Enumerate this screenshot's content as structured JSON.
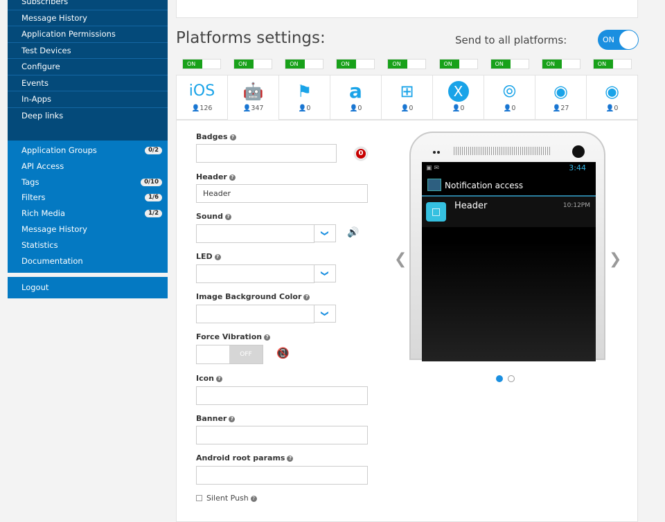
{
  "sidebar": {
    "app_items": [
      "Subscribers",
      "Message History",
      "Application Permissions",
      "Test Devices",
      "Configure",
      "Events",
      "In-Apps",
      "Deep links"
    ],
    "account_items": [
      {
        "label": "Application Groups",
        "badge": "0/2"
      },
      {
        "label": "API Access",
        "badge": null
      },
      {
        "label": "Tags",
        "badge": "0/10"
      },
      {
        "label": "Filters",
        "badge": "1/6"
      },
      {
        "label": "Rich Media",
        "badge": "1/2"
      },
      {
        "label": "Message History",
        "badge": null
      },
      {
        "label": "Statistics",
        "badge": null
      },
      {
        "label": "Documentation",
        "badge": null
      }
    ],
    "logout": "Logout"
  },
  "main": {
    "title": "Platforms settings:",
    "send_all_label": "Send to all platforms:",
    "send_all_toggle": "ON",
    "platforms": [
      {
        "name": "iOS",
        "icon": "ios-icon",
        "count": "126",
        "toggle": "ON"
      },
      {
        "name": "Android",
        "icon": "android-icon",
        "count": "347",
        "toggle": "ON",
        "active": true
      },
      {
        "name": "Windows Phone",
        "icon": "windows-phone-icon",
        "count": "0",
        "toggle": "ON"
      },
      {
        "name": "Amazon",
        "icon": "amazon-icon",
        "count": "0",
        "toggle": "ON"
      },
      {
        "name": "Windows",
        "icon": "windows-icon",
        "count": "0",
        "toggle": "ON"
      },
      {
        "name": "Mac OS X",
        "icon": "osx-icon",
        "count": "0",
        "toggle": "ON"
      },
      {
        "name": "Safari",
        "icon": "safari-icon",
        "count": "0",
        "toggle": "ON"
      },
      {
        "name": "Chrome",
        "icon": "chrome-icon",
        "count": "27",
        "toggle": "ON"
      },
      {
        "name": "Firefox",
        "icon": "firefox-icon",
        "count": "0",
        "toggle": "ON"
      }
    ],
    "form": {
      "badges_label": "Badges",
      "badges_value": "",
      "badge_preview": "0",
      "header_label": "Header",
      "header_value": "Header",
      "sound_label": "Sound",
      "sound_value": "",
      "led_label": "LED",
      "led_value": "",
      "image_bg_label": "Image Background Color",
      "image_bg_value": "",
      "force_vibration_label": "Force Vibration",
      "force_vibration_toggle": "OFF",
      "icon_label": "Icon",
      "icon_value": "",
      "banner_label": "Banner",
      "banner_value": "",
      "android_root_label": "Android root params",
      "android_root_value": "",
      "silent_push_label": "Silent Push",
      "silent_push_checked": false
    },
    "preview": {
      "clock": "3:44",
      "app_title": "Notification access",
      "notif_title": "Header",
      "notif_time": "10:12PM",
      "active_slide": 1,
      "slides": 2
    }
  },
  "colors": {
    "accent": "#19a3e8",
    "sidebar_dark": "#044a7a",
    "sidebar_light": "#0479c2",
    "on_green": "#18a11a"
  }
}
